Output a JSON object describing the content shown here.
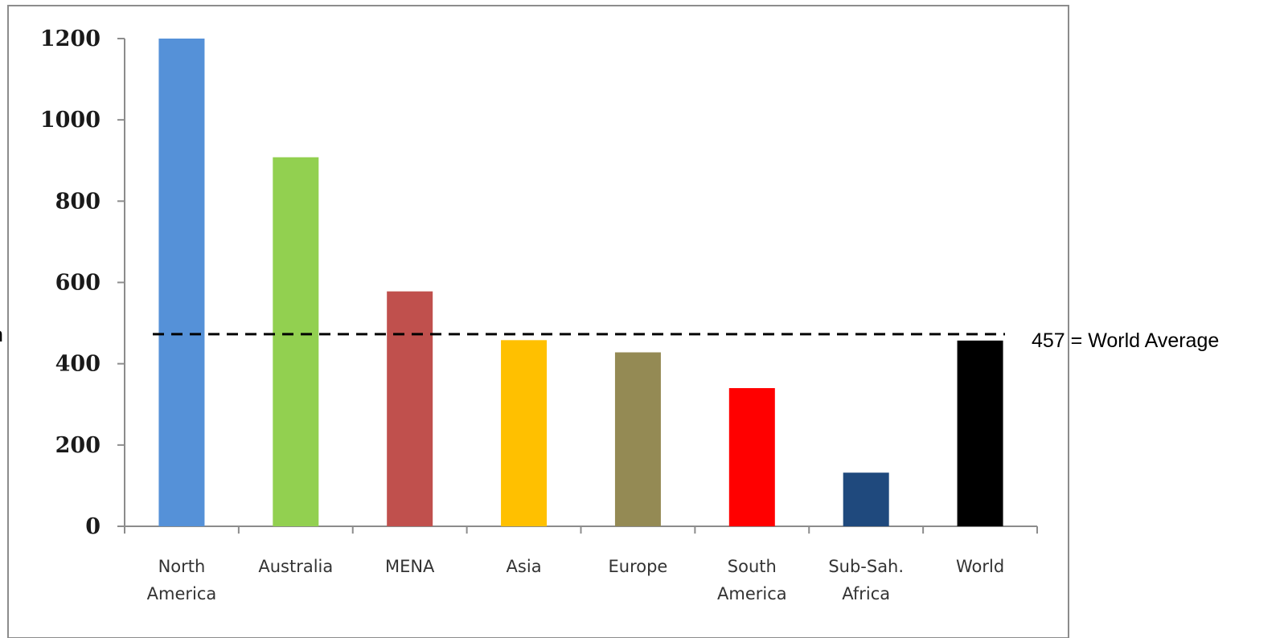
{
  "chart_data": {
    "type": "bar",
    "title": "",
    "xlabel": "",
    "ylabel": "",
    "categories": [
      [
        "North",
        "America"
      ],
      [
        "Australia"
      ],
      [
        "MENA"
      ],
      [
        "Asia"
      ],
      [
        "Europe"
      ],
      [
        "South",
        "America"
      ],
      [
        "Sub-Sah.",
        "Africa"
      ],
      [
        "World"
      ]
    ],
    "values": [
      1200,
      908,
      578,
      458,
      428,
      340,
      132,
      457
    ],
    "bar_colors": [
      "#5591d8",
      "#92d050",
      "#c0504d",
      "#ffc000",
      "#948a54",
      "#ff0000",
      "#1f497d",
      "#000000"
    ],
    "ylim": [
      0,
      1200
    ],
    "yticks": [
      "0",
      "200",
      "400",
      "600",
      "800",
      "1000",
      "1200"
    ],
    "grid": false,
    "legend": "none",
    "reference_line": {
      "value": 457,
      "label": "457 = World Average",
      "style": "dashed",
      "color": "#000000"
    },
    "left_edge_fragment": "n"
  }
}
